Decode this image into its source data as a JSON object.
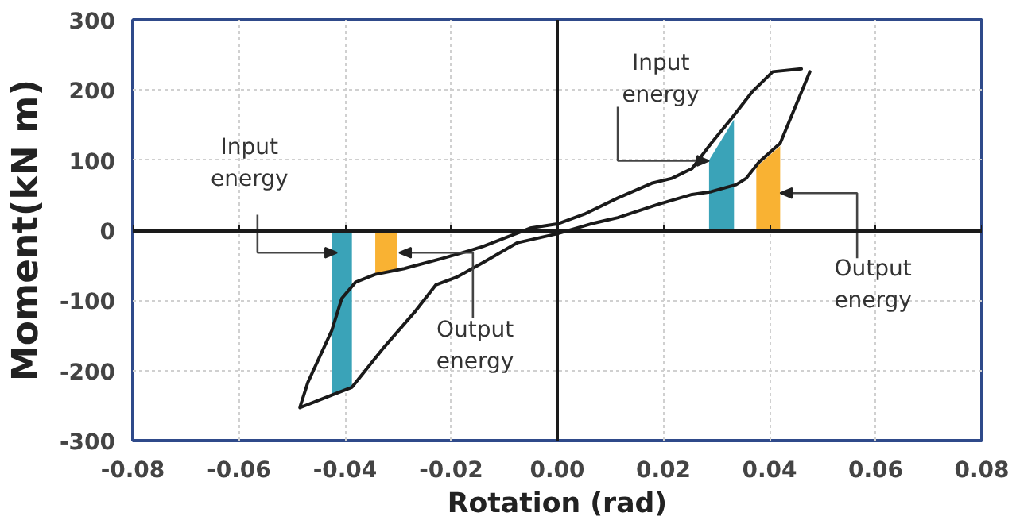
{
  "chart_data": {
    "type": "line",
    "xlabel": "Rotation (rad)",
    "ylabel": "Moment(kN m)",
    "xlim": [
      -0.08,
      0.08
    ],
    "ylim": [
      -300,
      300
    ],
    "xticks": [
      {
        "value": -0.08,
        "label": "-0.08"
      },
      {
        "value": -0.06,
        "label": "-0.06"
      },
      {
        "value": -0.04,
        "label": "-0.04"
      },
      {
        "value": -0.02,
        "label": "-0.02"
      },
      {
        "value": 0,
        "label": "0.00"
      },
      {
        "value": 0.02,
        "label": "0.02"
      },
      {
        "value": 0.04,
        "label": "0.04"
      },
      {
        "value": 0.06,
        "label": "0.06"
      },
      {
        "value": 0.08,
        "label": "0.08"
      }
    ],
    "yticks": [
      -300,
      -200,
      -100,
      0,
      100,
      200,
      300
    ],
    "grid": true,
    "series": [
      {
        "type": "line",
        "color": "#1a1a1a",
        "x": [
          -0.0485,
          -0.0425,
          -0.0387,
          -0.033,
          -0.0267,
          -0.0229,
          -0.019,
          -0.014,
          -0.0076,
          0,
          0.0063,
          0.0114,
          0.019,
          0.0254,
          0.029,
          0.0337,
          0.0356,
          0.038,
          0.042,
          0.0476
        ],
        "values": [
          -253,
          -235,
          -224,
          -170,
          -115,
          -78,
          -67,
          -46,
          -18,
          -5,
          9,
          18,
          37,
          51,
          55,
          65,
          74,
          97,
          124,
          226
        ]
      },
      {
        "color": "#1a1a1a",
        "x": [
          0.046,
          0.0406,
          0.0368,
          0.033,
          0.029,
          0.0254,
          0.0216,
          0.0178,
          0.0114,
          0.0051,
          0,
          -0.0051,
          -0.014,
          -0.0165,
          -0.0216,
          -0.029,
          -0.0343,
          -0.038,
          -0.0406,
          -0.0425,
          -0.047,
          -0.0484
        ],
        "values": [
          230,
          226,
          198,
          161,
          124,
          88,
          74,
          67,
          46,
          23,
          9,
          3,
          -23,
          -29,
          -40,
          -55,
          -63,
          -74,
          -97,
          -143,
          -217,
          -250
        ]
      },
      {
        "type": "area",
        "color": "#3aa3b8",
        "x": [
          -0.0425,
          -0.0387
        ],
        "values": [
          -235,
          -224
        ]
      },
      {
        "type": "area",
        "color": "#f9b233",
        "x": [
          -0.0343,
          -0.0302
        ],
        "values": [
          -62,
          -55
        ]
      },
      {
        "type": "area",
        "color": "#3aa3b8",
        "x": [
          0.0286,
          0.0333
        ],
        "values": [
          100,
          158
        ]
      },
      {
        "type": "area",
        "color": "#f9b233",
        "x": [
          0.0375,
          0.042
        ],
        "values": [
          90,
          120
        ]
      }
    ],
    "annotations": [
      {
        "text": "Input energy",
        "x": -0.0415,
        "y": -32
      },
      {
        "text": "Output energy",
        "x": -0.0298,
        "y": -32
      },
      {
        "text": "Input energy",
        "x": 0.0286,
        "y": 99
      },
      {
        "text": "Output energy",
        "x": 0.042,
        "y": 53
      }
    ]
  }
}
